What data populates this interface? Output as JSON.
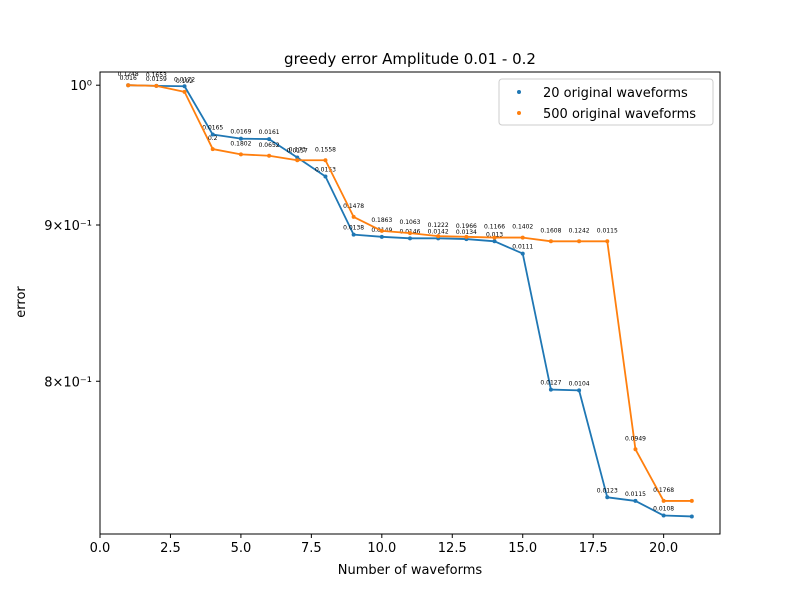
{
  "chart_data": {
    "type": "line",
    "title": "greedy error Amplitude 0.01 - 0.2",
    "xlabel": "Number of waveforms",
    "ylabel": "error",
    "xlim": [
      0,
      22
    ],
    "ylim": [
      0.713,
      1.01
    ],
    "yscale": "log",
    "xticks": [
      0,
      2.5,
      5,
      7.5,
      10,
      12.5,
      15,
      17.5,
      20
    ],
    "xtick_labels": [
      "0.0",
      "2.5",
      "5.0",
      "7.5",
      "10.0",
      "12.5",
      "15.0",
      "17.5",
      "20.0"
    ],
    "yticks": [
      1.0,
      0.9,
      0.8
    ],
    "ytick_labels": [
      "10⁰",
      "9×10⁻¹",
      "8×10⁻¹"
    ],
    "legend_position": "top-right",
    "series": [
      {
        "name": "20 original waveforms",
        "color": "#1f77b4",
        "x": [
          1,
          2,
          3,
          4,
          5,
          6,
          7,
          8,
          9,
          10,
          11,
          12,
          13,
          14,
          15,
          16,
          17,
          18,
          19,
          20,
          21
        ],
        "y": [
          1.0,
          0.9995,
          0.9992,
          0.9635,
          0.9605,
          0.9602,
          0.947,
          0.9335,
          0.8935,
          0.892,
          0.891,
          0.891,
          0.8905,
          0.889,
          0.8808,
          0.795,
          0.7945,
          0.733,
          0.731,
          0.723,
          0.7225
        ],
        "labels": [
          "0.016",
          "0.0159",
          "0.0172",
          "0.0165",
          "0.0169",
          "0.0161",
          "0.0157",
          "0.0153",
          "0.0138",
          "0.0149",
          "0.0146",
          "0.0142",
          "0.0134",
          "0.013",
          "0.0111",
          "0.0127",
          "0.0104",
          "0.0123",
          "0.0115",
          "0.0108",
          ""
        ]
      },
      {
        "name": "500 original waveforms",
        "color": "#ff7f0e",
        "x": [
          1,
          2,
          3,
          4,
          5,
          6,
          7,
          8,
          9,
          10,
          11,
          12,
          13,
          14,
          15,
          16,
          17,
          18,
          19,
          20,
          21
        ],
        "y": [
          1.0,
          0.9995,
          0.995,
          0.953,
          0.9492,
          0.9482,
          0.945,
          0.945,
          0.9055,
          0.896,
          0.8945,
          0.8925,
          0.892,
          0.8915,
          0.8915,
          0.889,
          0.889,
          0.889,
          0.76,
          0.731,
          0.731
        ],
        "labels": [
          "0.1248",
          "0.1653",
          "0.192",
          "0.2",
          "0.1802",
          "0.0652",
          "0.173",
          "0.1558",
          "0.1478",
          "0.1863",
          "0.1063",
          "0.1222",
          "0.1966",
          "0.1166",
          "0.1402",
          "0.1608",
          "0.1242",
          "0.0115",
          "0.0949",
          "0.1768",
          ""
        ]
      }
    ]
  }
}
